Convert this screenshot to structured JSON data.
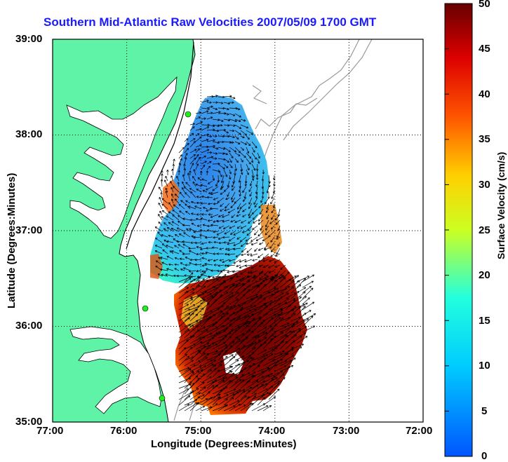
{
  "title": "Southern Mid-Atlantic Raw Velocities 2007/05/09 1700 GMT",
  "xlabel": "Longitude (Degrees:Minutes)",
  "ylabel": "Latitude (Degrees:Minutes)",
  "colorbar_label": "Surface Velocity (cm/s)",
  "x_ticks": [
    "77:00",
    "76:00",
    "75:00",
    "74:00",
    "73:00",
    "72:00"
  ],
  "y_ticks": [
    "39:00",
    "38:00",
    "37:00",
    "36:00",
    "35:00"
  ],
  "colorbar_ticks": [
    "50",
    "45",
    "40",
    "35",
    "30",
    "25",
    "20",
    "15",
    "10",
    "5",
    "0"
  ],
  "colors": {
    "land": "#5ff3a8",
    "title": "#1a1aff",
    "station": "#22ee22"
  },
  "map": {
    "lon_range": [
      -77.0,
      -72.0
    ],
    "lat_range": [
      35.0,
      39.0
    ],
    "colorbar_range": [
      0,
      50
    ],
    "grid": true
  }
}
